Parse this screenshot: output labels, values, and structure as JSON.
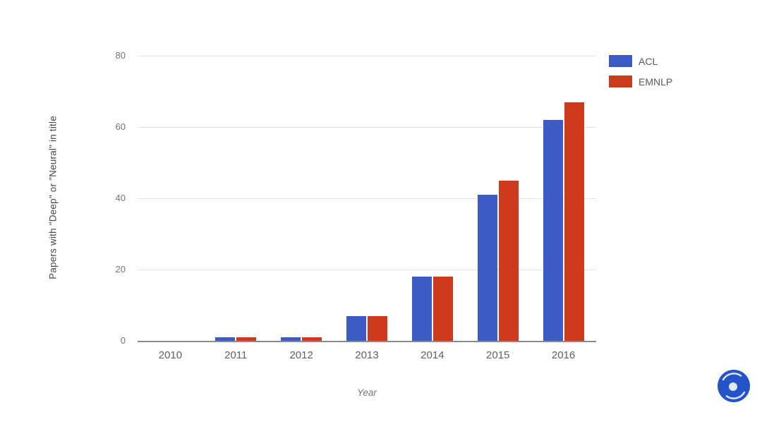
{
  "chart_data": {
    "type": "bar",
    "title": "",
    "categories": [
      "2010",
      "2011",
      "2012",
      "2013",
      "2014",
      "2015",
      "2016"
    ],
    "series": [
      {
        "name": "ACL",
        "color": "#3c5bc4",
        "values": [
          0,
          1,
          1,
          7,
          18,
          41,
          62
        ]
      },
      {
        "name": "EMNLP",
        "color": "#cf3a1d",
        "values": [
          0,
          1,
          1,
          7,
          18,
          45,
          67
        ]
      }
    ],
    "xlabel": "Year",
    "ylabel": "Papers with \"Deep\" or \"Neural\" in title",
    "ylim": [
      0,
      80
    ],
    "yticks": [
      0,
      20,
      40,
      60,
      80
    ],
    "grid": true,
    "legend_position": "top-right",
    "background": "#ffffff",
    "gridline_color": "#e4e4e4",
    "axis_line_color": "#8a8a8a"
  },
  "watermark": {
    "icon": "swirl-logo",
    "color": "#2553c9",
    "accent": "#dce8fb"
  }
}
